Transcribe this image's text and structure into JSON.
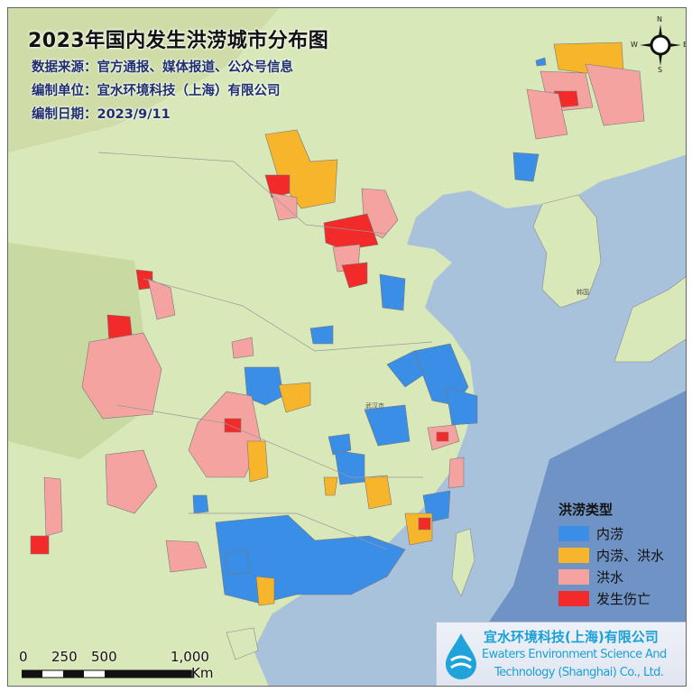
{
  "title": "2023年国内发生洪涝城市分布图",
  "info": {
    "source": "数据来源：官方通报、媒体报道、公众号信息",
    "unit": "编制单位：宜水环境科技（上海）有限公司",
    "date": "编制日期：2023/9/11"
  },
  "legend": {
    "title": "洪涝类型",
    "items": [
      {
        "label": "内涝",
        "color": "#3a8ee6"
      },
      {
        "label": "内涝、洪水",
        "color": "#f7b52c"
      },
      {
        "label": "洪水",
        "color": "#f4a3a0"
      },
      {
        "label": "发生伤亡",
        "color": "#f22a2a"
      }
    ]
  },
  "logo": {
    "name_cn": "宜水环境科技(上海)有限公司",
    "name_en_1": "Ewaters Environment Science And",
    "name_en_2": "Technology (Shanghai) Co., Ltd."
  },
  "scale_bar": {
    "ticks": [
      "0",
      "250",
      "500",
      "1,000"
    ],
    "unit": "Km"
  },
  "compass": {
    "n": "N",
    "s": "S",
    "w": "W",
    "e": "E"
  },
  "map_labels": {
    "wuhan": "武汉市",
    "korea": "韩国"
  },
  "colors": {
    "land": "#d9e8b8",
    "sea": "#a9c2dc",
    "deep_sea": "#6f93c4"
  }
}
